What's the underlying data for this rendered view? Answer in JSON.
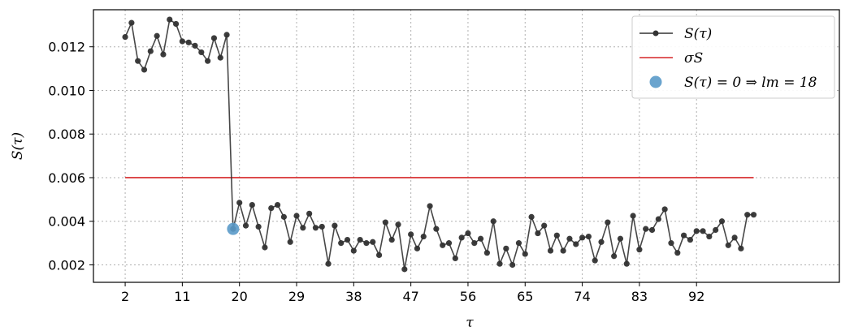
{
  "chart_data": {
    "type": "line",
    "xlabel": "τ",
    "ylabel": "S(τ)",
    "xlim": [
      -3,
      114.5
    ],
    "ylim": [
      0.0012,
      0.0137
    ],
    "xticks": [
      2,
      11,
      20,
      29,
      38,
      47,
      56,
      65,
      74,
      83,
      92
    ],
    "yticks": [
      0.002,
      0.004,
      0.006,
      0.008,
      0.01,
      0.012
    ],
    "ytick_labels": [
      "0.002",
      "0.004",
      "0.006",
      "0.008",
      "0.010",
      "0.012"
    ],
    "grid": true,
    "legend_position": "top-right",
    "colors": {
      "series": "#333333",
      "threshold": "#d62728",
      "marker": "#5a9ac9"
    },
    "series": [
      {
        "name": "S(τ)",
        "style": "line-markers",
        "x": [
          2,
          3,
          4,
          5,
          6,
          7,
          8,
          9,
          10,
          11,
          12,
          13,
          14,
          15,
          16,
          17,
          18,
          19,
          20,
          21,
          22,
          23,
          24,
          25,
          26,
          27,
          28,
          29,
          30,
          31,
          32,
          33,
          34,
          35,
          36,
          37,
          38,
          39,
          40,
          41,
          42,
          43,
          44,
          45,
          46,
          47,
          48,
          49,
          50,
          51,
          52,
          53,
          54,
          55,
          56,
          57,
          58,
          59,
          60,
          61,
          62,
          63,
          64,
          65,
          66,
          67,
          68,
          69,
          70,
          71,
          72,
          73,
          74,
          75,
          76,
          77,
          78,
          79,
          80,
          81,
          82,
          83,
          84,
          85,
          86,
          87,
          88,
          89,
          90,
          91,
          92,
          93,
          94,
          95,
          96,
          97,
          98,
          99,
          100,
          101
        ],
        "y": [
          0.01245,
          0.0131,
          0.01135,
          0.01095,
          0.0118,
          0.0125,
          0.01165,
          0.01325,
          0.01305,
          0.01225,
          0.0122,
          0.01205,
          0.01175,
          0.01135,
          0.0124,
          0.0115,
          0.01255,
          0.00365,
          0.00485,
          0.0038,
          0.00475,
          0.00375,
          0.0028,
          0.0046,
          0.00475,
          0.0042,
          0.00305,
          0.00425,
          0.0037,
          0.00435,
          0.0037,
          0.00375,
          0.00205,
          0.0038,
          0.003,
          0.00315,
          0.00265,
          0.00315,
          0.003,
          0.00305,
          0.00245,
          0.00395,
          0.00315,
          0.00385,
          0.0018,
          0.0034,
          0.00275,
          0.0033,
          0.0047,
          0.00365,
          0.0029,
          0.003,
          0.0023,
          0.00325,
          0.00345,
          0.003,
          0.0032,
          0.00255,
          0.004,
          0.00205,
          0.00275,
          0.002,
          0.003,
          0.0025,
          0.0042,
          0.00345,
          0.0038,
          0.00265,
          0.00335,
          0.00265,
          0.0032,
          0.00295,
          0.00325,
          0.0033,
          0.0022,
          0.00305,
          0.00395,
          0.0024,
          0.0032,
          0.00205,
          0.00425,
          0.0027,
          0.00365,
          0.0036,
          0.0041,
          0.00455,
          0.003,
          0.00255,
          0.00335,
          0.00315,
          0.00355,
          0.00355,
          0.0033,
          0.0036,
          0.004,
          0.0029,
          0.00325,
          0.00275,
          0.0043,
          0.0043
        ]
      },
      {
        "name": "σS",
        "style": "line",
        "x": [
          2,
          101
        ],
        "y": [
          0.006,
          0.006
        ]
      },
      {
        "name": "S(τ) = 0 ⇒ lm = 18",
        "style": "point",
        "x": [
          19
        ],
        "y": [
          0.00365
        ]
      }
    ],
    "legend": {
      "entry1": "S(τ)",
      "entry2": "σS",
      "entry3": "S(τ) = 0 ⇒ lm = 18"
    }
  }
}
